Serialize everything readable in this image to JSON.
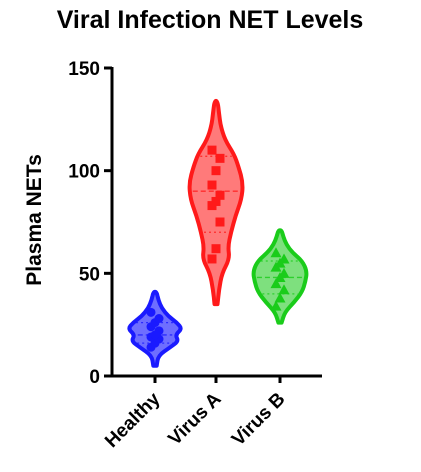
{
  "chart_data": {
    "type": "violin",
    "title": "Viral Infection NET Levels",
    "xlabel": "",
    "ylabel": "Plasma NETs",
    "ylim": [
      0,
      150
    ],
    "yticks": [
      0,
      50,
      100,
      150
    ],
    "grid": false,
    "legend": "none",
    "categories": [
      "Healthy",
      "Virus A",
      "Virus B"
    ],
    "series": [
      {
        "category": "Healthy",
        "color": "#1a1aff",
        "fill": "#6e6eff",
        "marker": "circle",
        "range": [
          5,
          41
        ],
        "median": 20,
        "quartiles": [
          16,
          26
        ],
        "points": [
          14,
          16,
          18,
          19,
          20,
          22,
          24,
          26,
          28,
          31
        ],
        "density": [
          [
            5,
            1
          ],
          [
            10,
            2
          ],
          [
            14,
            9
          ],
          [
            17,
            14
          ],
          [
            20,
            12
          ],
          [
            23,
            16
          ],
          [
            26,
            13
          ],
          [
            29,
            8
          ],
          [
            33,
            4
          ],
          [
            37,
            2
          ],
          [
            41,
            1
          ]
        ]
      },
      {
        "category": "Virus A",
        "color": "#ff1a1a",
        "fill": "#ff7a7a",
        "marker": "square",
        "range": [
          35,
          134
        ],
        "median": 90,
        "quartiles": [
          70,
          107
        ],
        "points": [
          57,
          62,
          75,
          83,
          85,
          88,
          93,
          100,
          106,
          110
        ],
        "density": [
          [
            35,
            1
          ],
          [
            42,
            2
          ],
          [
            50,
            4
          ],
          [
            57,
            9
          ],
          [
            63,
            8
          ],
          [
            70,
            10
          ],
          [
            78,
            13
          ],
          [
            86,
            17
          ],
          [
            94,
            18
          ],
          [
            102,
            15
          ],
          [
            108,
            12
          ],
          [
            115,
            6
          ],
          [
            122,
            3
          ],
          [
            128,
            2
          ],
          [
            134,
            1
          ]
        ]
      },
      {
        "category": "Virus B",
        "color": "#1acc1a",
        "fill": "#7ee07e",
        "marker": "triangle",
        "range": [
          26,
          71
        ],
        "median": 48,
        "quartiles": [
          40,
          56
        ],
        "points": [
          34,
          38,
          42,
          45,
          48,
          50,
          53,
          55,
          57,
          60
        ],
        "density": [
          [
            26,
            1
          ],
          [
            31,
            3
          ],
          [
            36,
            9
          ],
          [
            41,
            14
          ],
          [
            46,
            16
          ],
          [
            51,
            17
          ],
          [
            56,
            14
          ],
          [
            60,
            8
          ],
          [
            64,
            4
          ],
          [
            68,
            2
          ],
          [
            71,
            1
          ]
        ]
      }
    ]
  }
}
